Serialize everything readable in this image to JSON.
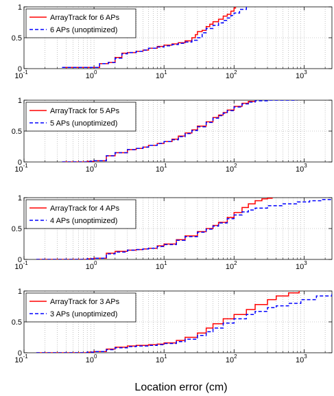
{
  "xlabel": "Location error (cm)",
  "colors": {
    "optimized": "#ff0000",
    "unoptimized": "#0000ff",
    "grid": "#999999",
    "axis": "#000000"
  },
  "chart_data": [
    {
      "type": "line",
      "xscale": "log",
      "xlim": [
        0.1,
        2500
      ],
      "ylim": [
        0,
        1
      ],
      "xticks": [
        "10^-1",
        "10^0",
        "10^1",
        "10^2",
        "10^3"
      ],
      "yticks": [
        "0",
        "0.5",
        "1"
      ],
      "grid": true,
      "legend_position": "top-left",
      "series": [
        {
          "name": "ArrayTrack for 6 APs",
          "style": "solid",
          "x": [
            0.35,
            0.6,
            0.9,
            1.2,
            1.6,
            2.0,
            2.5,
            3.0,
            4.0,
            5.0,
            6.0,
            8.0,
            10.0,
            13.0,
            16.0,
            20.0,
            25.0,
            28.0,
            30.0,
            35.0,
            40.0,
            45.0,
            50.0,
            60.0,
            70.0,
            80.0,
            90.0,
            100.0,
            105.0
          ],
          "y": [
            0.02,
            0.02,
            0.02,
            0.08,
            0.1,
            0.18,
            0.25,
            0.26,
            0.28,
            0.3,
            0.33,
            0.36,
            0.38,
            0.4,
            0.42,
            0.45,
            0.5,
            0.55,
            0.6,
            0.62,
            0.68,
            0.72,
            0.76,
            0.8,
            0.85,
            0.88,
            0.93,
            0.98,
            1.0
          ]
        },
        {
          "name": "6 APs (unoptimized)",
          "style": "dashed",
          "x": [
            0.35,
            0.6,
            0.9,
            1.2,
            1.6,
            2.0,
            2.5,
            3.0,
            4.0,
            5.0,
            6.0,
            8.0,
            10.0,
            13.0,
            16.0,
            20.0,
            25.0,
            30.0,
            35.0,
            40.0,
            50.0,
            60.0,
            70.0,
            80.0,
            90.0,
            100.0,
            120.0,
            150.0
          ],
          "y": [
            0.02,
            0.02,
            0.02,
            0.08,
            0.1,
            0.17,
            0.24,
            0.26,
            0.28,
            0.3,
            0.33,
            0.35,
            0.37,
            0.39,
            0.41,
            0.43,
            0.46,
            0.5,
            0.58,
            0.65,
            0.7,
            0.74,
            0.78,
            0.82,
            0.86,
            0.9,
            0.96,
            1.0
          ]
        }
      ]
    },
    {
      "type": "line",
      "xscale": "log",
      "xlim": [
        0.1,
        2500
      ],
      "ylim": [
        0,
        1
      ],
      "xticks": [
        "10^-1",
        "10^0",
        "10^1",
        "10^2",
        "10^3"
      ],
      "yticks": [
        "0",
        "0.5",
        "1"
      ],
      "grid": true,
      "legend_position": "top-left",
      "series": [
        {
          "name": "ArrayTrack for 5 APs",
          "style": "solid",
          "x": [
            0.35,
            0.6,
            0.8,
            1.0,
            1.5,
            2.0,
            3.0,
            4.0,
            5.0,
            6.0,
            8.0,
            10.0,
            13.0,
            16.0,
            20.0,
            25.0,
            30.0,
            40.0,
            50.0,
            60.0,
            70.0,
            80.0,
            100.0,
            130.0,
            160.0,
            200.0
          ],
          "y": [
            0.0,
            0.0,
            0.01,
            0.02,
            0.1,
            0.15,
            0.2,
            0.22,
            0.24,
            0.27,
            0.3,
            0.33,
            0.37,
            0.42,
            0.47,
            0.52,
            0.58,
            0.65,
            0.72,
            0.76,
            0.8,
            0.84,
            0.9,
            0.95,
            0.98,
            1.0
          ]
        },
        {
          "name": "5 APs (unoptimized)",
          "style": "dashed",
          "x": [
            0.35,
            0.6,
            0.8,
            1.0,
            1.5,
            2.0,
            3.0,
            4.0,
            5.0,
            6.0,
            8.0,
            10.0,
            13.0,
            16.0,
            20.0,
            25.0,
            30.0,
            40.0,
            50.0,
            60.0,
            70.0,
            80.0,
            100.0,
            130.0,
            160.0,
            200.0,
            300.0,
            500.0,
            800.0
          ],
          "y": [
            0.0,
            0.0,
            0.01,
            0.02,
            0.1,
            0.15,
            0.2,
            0.22,
            0.24,
            0.27,
            0.3,
            0.33,
            0.36,
            0.41,
            0.46,
            0.51,
            0.57,
            0.64,
            0.71,
            0.75,
            0.79,
            0.83,
            0.89,
            0.94,
            0.97,
            0.99,
            1.0,
            1.0,
            1.0
          ]
        }
      ]
    },
    {
      "type": "line",
      "xscale": "log",
      "xlim": [
        0.1,
        2500
      ],
      "ylim": [
        0,
        1
      ],
      "xticks": [
        "10^-1",
        "10^0",
        "10^1",
        "10^2",
        "10^3"
      ],
      "yticks": [
        "0",
        "0.5",
        "1"
      ],
      "grid": true,
      "legend_position": "top-left",
      "series": [
        {
          "name": "ArrayTrack for 4 APs",
          "style": "solid",
          "x": [
            0.15,
            0.3,
            0.5,
            0.8,
            1.0,
            1.5,
            2.0,
            3.0,
            4.0,
            5.0,
            6.0,
            8.0,
            10.0,
            15.0,
            20.0,
            30.0,
            40.0,
            50.0,
            60.0,
            80.0,
            100.0,
            130.0,
            160.0,
            200.0,
            250.0,
            300.0,
            350.0
          ],
          "y": [
            0.0,
            0.0,
            0.0,
            0.01,
            0.02,
            0.1,
            0.13,
            0.15,
            0.16,
            0.17,
            0.18,
            0.22,
            0.25,
            0.32,
            0.38,
            0.45,
            0.5,
            0.55,
            0.6,
            0.68,
            0.76,
            0.84,
            0.9,
            0.95,
            0.98,
            0.99,
            1.0
          ]
        },
        {
          "name": "4 APs (unoptimized)",
          "style": "dashed",
          "x": [
            0.15,
            0.3,
            0.5,
            0.8,
            1.0,
            1.5,
            2.0,
            3.0,
            4.0,
            5.0,
            6.0,
            8.0,
            10.0,
            15.0,
            20.0,
            30.0,
            40.0,
            50.0,
            60.0,
            80.0,
            100.0,
            130.0,
            160.0,
            200.0,
            300.0,
            500.0,
            800.0,
            1200.0,
            1800.0,
            2500.0
          ],
          "y": [
            0.0,
            0.0,
            0.0,
            0.01,
            0.02,
            0.09,
            0.12,
            0.15,
            0.16,
            0.17,
            0.18,
            0.21,
            0.24,
            0.31,
            0.37,
            0.44,
            0.49,
            0.54,
            0.59,
            0.66,
            0.72,
            0.77,
            0.8,
            0.83,
            0.87,
            0.9,
            0.93,
            0.95,
            0.97,
            0.99
          ]
        }
      ]
    },
    {
      "type": "line",
      "xscale": "log",
      "xlim": [
        0.1,
        2500
      ],
      "ylim": [
        0,
        1
      ],
      "xticks": [
        "10^-1",
        "10^0",
        "10^1",
        "10^2",
        "10^3"
      ],
      "yticks": [
        "0",
        "0.5",
        "1"
      ],
      "grid": true,
      "legend_position": "top-left",
      "series": [
        {
          "name": "ArrayTrack for 3 APs",
          "style": "solid",
          "x": [
            0.15,
            0.3,
            0.5,
            0.8,
            1.0,
            1.5,
            2.0,
            3.0,
            4.0,
            6.0,
            8.0,
            10.0,
            15.0,
            20.0,
            30.0,
            40.0,
            50.0,
            70.0,
            100.0,
            150.0,
            200.0,
            300.0,
            400.0,
            600.0,
            850.0
          ],
          "y": [
            0.0,
            0.0,
            0.0,
            0.01,
            0.02,
            0.06,
            0.09,
            0.11,
            0.12,
            0.13,
            0.14,
            0.16,
            0.2,
            0.25,
            0.32,
            0.4,
            0.47,
            0.55,
            0.62,
            0.7,
            0.78,
            0.86,
            0.92,
            0.97,
            1.0
          ]
        },
        {
          "name": "3 APs (unoptimized)",
          "style": "dashed",
          "x": [
            0.15,
            0.3,
            0.5,
            0.8,
            1.0,
            1.5,
            2.0,
            3.0,
            4.0,
            6.0,
            8.0,
            10.0,
            15.0,
            20.0,
            30.0,
            40.0,
            50.0,
            70.0,
            100.0,
            150.0,
            200.0,
            300.0,
            400.0,
            600.0,
            900.0,
            1500.0,
            2500.0
          ],
          "y": [
            0.0,
            0.0,
            0.0,
            0.01,
            0.02,
            0.05,
            0.08,
            0.1,
            0.11,
            0.12,
            0.13,
            0.15,
            0.18,
            0.22,
            0.28,
            0.34,
            0.4,
            0.48,
            0.55,
            0.62,
            0.67,
            0.73,
            0.76,
            0.8,
            0.86,
            0.92,
            0.99
          ]
        }
      ]
    }
  ]
}
